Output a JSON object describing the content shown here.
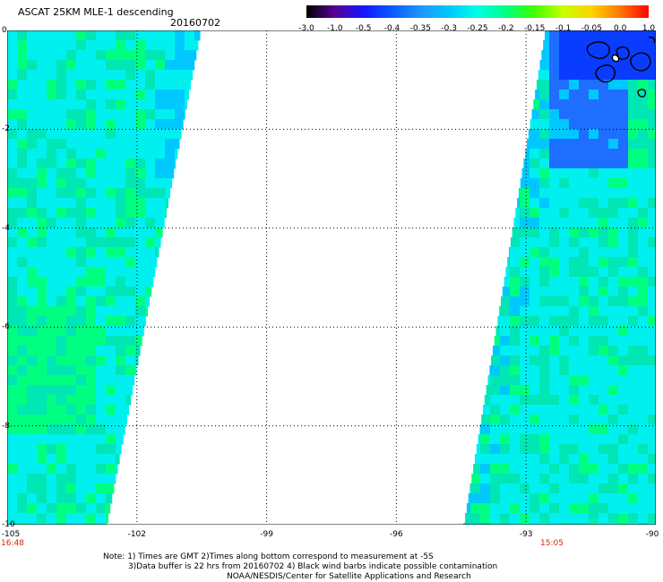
{
  "header": {
    "title": "ASCAT 25KM MLE-1 descending",
    "date": "20160702"
  },
  "colorbar": {
    "labels": [
      "-3.0",
      "-1.0",
      "-0.5",
      "-0.4",
      "-0.35",
      "-0.3",
      "-0.25",
      "-0.2",
      "-0.15",
      "-0.1",
      "-0.05",
      "0.0",
      "1.0"
    ],
    "colors": [
      "#000000",
      "#5a0096",
      "#1414ff",
      "#0a5aff",
      "#1e96ff",
      "#00c8ff",
      "#00ffe6",
      "#00ff80",
      "#40ff00",
      "#c8ff00",
      "#ffd200",
      "#ff7800",
      "#ff0000"
    ]
  },
  "map": {
    "lat_labels": [
      "0",
      "-2",
      "-4",
      "-6",
      "-8",
      "-10"
    ],
    "lon_labels": [
      "-105",
      "-102",
      "-99",
      "-96",
      "-93",
      "-90"
    ],
    "times": [
      "16:48",
      "15:05"
    ],
    "lat_range": [
      -10,
      0
    ],
    "lon_range": [
      -105,
      -90
    ],
    "colors": {
      "cyan": "#00f0f0",
      "green": "#00ff80",
      "teal": "#00e6b4",
      "light_blue": "#00c8ff",
      "blue": "#1e6eff",
      "dark_blue": "#0a3cff",
      "coast": "#000000"
    }
  },
  "notes": [
    "Note: 1) Times are GMT 2)Times along bottom correspond to measurement at -5S",
    "3)Data buffer is 22 hrs from 20160702 4) Black wind barbs indicate possible contamination",
    "NOAA/NESDIS/Center for Satellite Applications and Research"
  ]
}
